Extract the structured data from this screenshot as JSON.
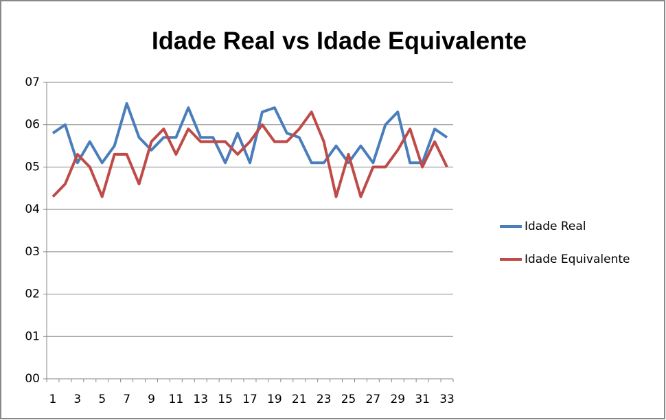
{
  "chart_data": {
    "type": "line",
    "title": "Idade Real vs Idade Equivalente",
    "categories": [
      1,
      null,
      3,
      null,
      5,
      null,
      7,
      null,
      9,
      null,
      11,
      null,
      13,
      null,
      15,
      null,
      17,
      null,
      19,
      null,
      21,
      null,
      23,
      null,
      25,
      null,
      27,
      null,
      29,
      null,
      31,
      null,
      33
    ],
    "series": [
      {
        "name": "Idade Real",
        "color": "#4a7ebb",
        "values": [
          5.8,
          6.0,
          5.1,
          5.6,
          5.1,
          5.5,
          6.5,
          5.7,
          5.4,
          5.7,
          5.7,
          6.4,
          5.7,
          5.7,
          5.1,
          5.8,
          5.1,
          6.3,
          6.4,
          5.8,
          5.7,
          5.1,
          5.1,
          5.5,
          5.1,
          5.5,
          5.1,
          6.0,
          6.3,
          5.1,
          5.1,
          5.9,
          5.7
        ]
      },
      {
        "name": "Idade Equivalente",
        "color": "#be4b48",
        "values": [
          4.3,
          4.6,
          5.3,
          5.0,
          4.3,
          5.3,
          5.3,
          4.6,
          5.6,
          5.9,
          5.3,
          5.9,
          5.6,
          5.6,
          5.6,
          5.3,
          5.6,
          6.0,
          5.6,
          5.6,
          5.9,
          6.3,
          5.6,
          4.3,
          5.3,
          4.3,
          5.0,
          5.0,
          5.4,
          5.9,
          5.0,
          5.6,
          5.0
        ]
      }
    ],
    "ylim": [
      0,
      7
    ],
    "yticks": [
      {
        "value": 0,
        "label": "00"
      },
      {
        "value": 1,
        "label": "01"
      },
      {
        "value": 2,
        "label": "02"
      },
      {
        "value": 3,
        "label": "03"
      },
      {
        "value": 4,
        "label": "04"
      },
      {
        "value": 5,
        "label": "05"
      },
      {
        "value": 6,
        "label": "06"
      },
      {
        "value": 7,
        "label": "07"
      }
    ],
    "grid": true,
    "legend": "right"
  }
}
